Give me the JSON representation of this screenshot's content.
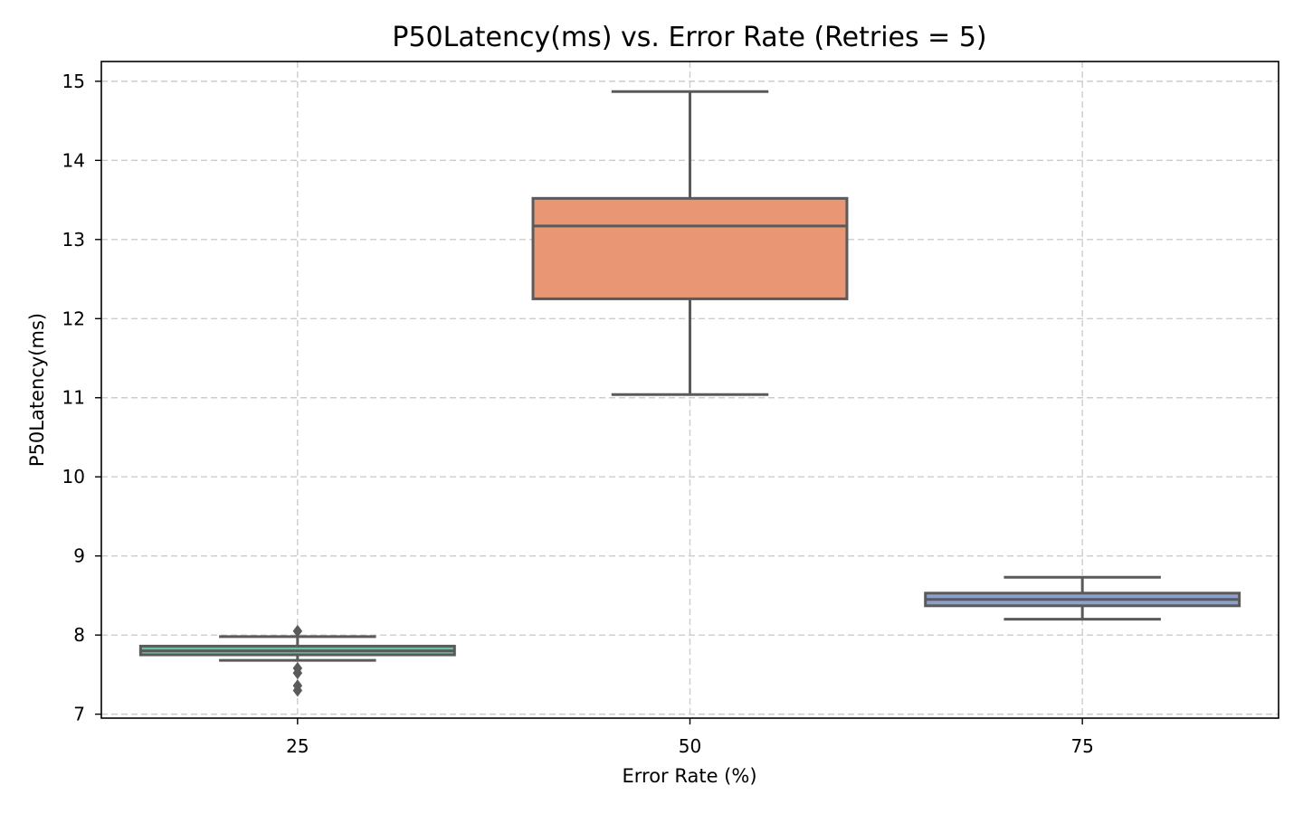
{
  "chart_data": {
    "type": "box",
    "title": "P50Latency(ms) vs. Error Rate (Retries = 5)",
    "xlabel": "Error Rate (%)",
    "ylabel": "P50Latency(ms)",
    "ylim": [
      6.95,
      15.25
    ],
    "yticks": [
      "7",
      "8",
      "9",
      "10",
      "11",
      "12",
      "13",
      "14",
      "15"
    ],
    "grid": true,
    "categories": [
      "25",
      "50",
      "75"
    ],
    "boxes": [
      {
        "category": "25",
        "whisker_low": 7.68,
        "q1": 7.75,
        "median": 7.8,
        "q3": 7.86,
        "whisker_high": 7.98,
        "outliers": [
          8.05,
          7.58,
          7.52,
          7.36,
          7.3
        ],
        "color": "#66c2a5"
      },
      {
        "category": "50",
        "whisker_low": 11.04,
        "q1": 12.25,
        "median": 13.17,
        "q3": 13.52,
        "whisker_high": 14.87,
        "outliers": [],
        "color": "#e89674"
      },
      {
        "category": "75",
        "whisker_low": 8.2,
        "q1": 8.37,
        "median": 8.45,
        "q3": 8.53,
        "whisker_high": 8.73,
        "outliers": [],
        "color": "#8da0cb"
      }
    ]
  }
}
